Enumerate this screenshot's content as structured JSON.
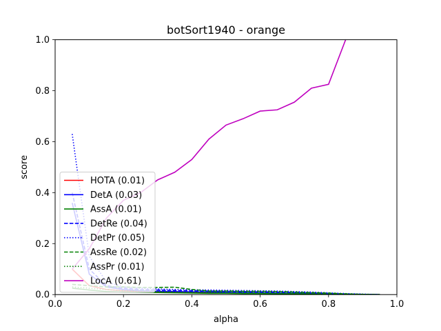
{
  "chart_data": {
    "type": "line",
    "title": "botSort1940 - orange",
    "xlabel": "alpha",
    "ylabel": "score",
    "xlim": [
      0.0,
      1.0
    ],
    "ylim": [
      0.0,
      1.0
    ],
    "xticks": [
      "0.0",
      "0.2",
      "0.4",
      "0.6",
      "0.8",
      "1.0"
    ],
    "yticks": [
      "0.0",
      "0.2",
      "0.4",
      "0.6",
      "0.8",
      "1.0"
    ],
    "grid": false,
    "legend_position": "lower-left",
    "series": [
      {
        "name": "HOTA (0.01)",
        "color": "#ff0000",
        "dash": "solid",
        "x": [
          0.05,
          0.1,
          0.15,
          0.2,
          0.25,
          0.3,
          0.35,
          0.4,
          0.45,
          0.5,
          0.55,
          0.6,
          0.65,
          0.7,
          0.75,
          0.8,
          0.85,
          0.9,
          0.95
        ],
        "y": [
          0.1,
          0.035,
          0.02,
          0.015,
          0.012,
          0.01,
          0.01,
          0.008,
          0.007,
          0.006,
          0.005,
          0.005,
          0.004,
          0.003,
          0.002,
          0.001,
          0.0005,
          0.0,
          0.0
        ]
      },
      {
        "name": "DetA (0.03)",
        "color": "#0000ff",
        "dash": "solid",
        "x": [
          0.05,
          0.1,
          0.15,
          0.2,
          0.25,
          0.3,
          0.35,
          0.4,
          0.45,
          0.5,
          0.55,
          0.6,
          0.65,
          0.7,
          0.75,
          0.8,
          0.85,
          0.9,
          0.95
        ],
        "y": [
          0.36,
          0.08,
          0.03,
          0.02,
          0.015,
          0.013,
          0.012,
          0.011,
          0.01,
          0.009,
          0.008,
          0.007,
          0.006,
          0.005,
          0.004,
          0.003,
          0.002,
          0.001,
          0.0
        ]
      },
      {
        "name": "AssA (0.01)",
        "color": "#008000",
        "dash": "solid",
        "x": [
          0.05,
          0.1,
          0.15,
          0.2,
          0.25,
          0.3,
          0.35,
          0.4,
          0.45,
          0.5,
          0.55,
          0.6,
          0.65,
          0.7,
          0.75,
          0.8,
          0.85,
          0.9,
          0.95
        ],
        "y": [
          0.025,
          0.018,
          0.012,
          0.01,
          0.009,
          0.008,
          0.007,
          0.006,
          0.005,
          0.005,
          0.004,
          0.004,
          0.003,
          0.003,
          0.002,
          0.002,
          0.001,
          0.0,
          0.0
        ]
      },
      {
        "name": "DetRe (0.04)",
        "color": "#0000ff",
        "dash": "dashed",
        "x": [
          0.05,
          0.1,
          0.15,
          0.2,
          0.25,
          0.3,
          0.35,
          0.4,
          0.45,
          0.5,
          0.55,
          0.6,
          0.65,
          0.7,
          0.75,
          0.8,
          0.85,
          0.9,
          0.95
        ],
        "y": [
          0.4,
          0.1,
          0.035,
          0.025,
          0.02,
          0.018,
          0.016,
          0.015,
          0.014,
          0.013,
          0.012,
          0.011,
          0.01,
          0.008,
          0.006,
          0.004,
          0.002,
          0.001,
          0.0
        ]
      },
      {
        "name": "DetPr (0.05)",
        "color": "#0000ff",
        "dash": "dotted",
        "x": [
          0.05,
          0.1,
          0.15,
          0.2,
          0.25,
          0.3,
          0.35,
          0.4,
          0.45,
          0.5,
          0.55,
          0.6,
          0.65,
          0.7,
          0.75,
          0.8,
          0.85,
          0.9,
          0.95
        ],
        "y": [
          0.63,
          0.15,
          0.05,
          0.03,
          0.025,
          0.022,
          0.02,
          0.019,
          0.018,
          0.017,
          0.016,
          0.015,
          0.014,
          0.012,
          0.01,
          0.007,
          0.004,
          0.002,
          0.0
        ]
      },
      {
        "name": "AssRe (0.02)",
        "color": "#008000",
        "dash": "dashed",
        "x": [
          0.05,
          0.1,
          0.15,
          0.2,
          0.25,
          0.3,
          0.35,
          0.4,
          0.45,
          0.5,
          0.55,
          0.6,
          0.65,
          0.7,
          0.75,
          0.8,
          0.85,
          0.9,
          0.95
        ],
        "y": [
          0.04,
          0.035,
          0.03,
          0.03,
          0.028,
          0.028,
          0.029,
          0.02,
          0.014,
          0.014,
          0.013,
          0.013,
          0.012,
          0.01,
          0.008,
          0.006,
          0.003,
          0.001,
          0.0
        ]
      },
      {
        "name": "AssPr (0.01)",
        "color": "#008000",
        "dash": "dotted",
        "x": [
          0.05,
          0.1,
          0.15,
          0.2,
          0.25,
          0.3,
          0.35,
          0.4,
          0.45,
          0.5,
          0.55,
          0.6,
          0.65,
          0.7,
          0.75,
          0.8,
          0.85,
          0.9,
          0.95
        ],
        "y": [
          0.03,
          0.025,
          0.02,
          0.015,
          0.013,
          0.012,
          0.01,
          0.01,
          0.009,
          0.008,
          0.008,
          0.007,
          0.006,
          0.005,
          0.004,
          0.003,
          0.002,
          0.001,
          0.0
        ]
      },
      {
        "name": "LocA (0.61)",
        "color": "#bf00bf",
        "dash": "solid",
        "x": [
          0.05,
          0.1,
          0.15,
          0.2,
          0.25,
          0.3,
          0.35,
          0.4,
          0.45,
          0.5,
          0.55,
          0.6,
          0.65,
          0.7,
          0.75,
          0.8,
          0.85
        ],
        "y": [
          0.1,
          0.18,
          0.3,
          0.37,
          0.4,
          0.45,
          0.48,
          0.53,
          0.61,
          0.665,
          0.69,
          0.72,
          0.725,
          0.755,
          0.81,
          0.825,
          1.0
        ]
      }
    ]
  }
}
